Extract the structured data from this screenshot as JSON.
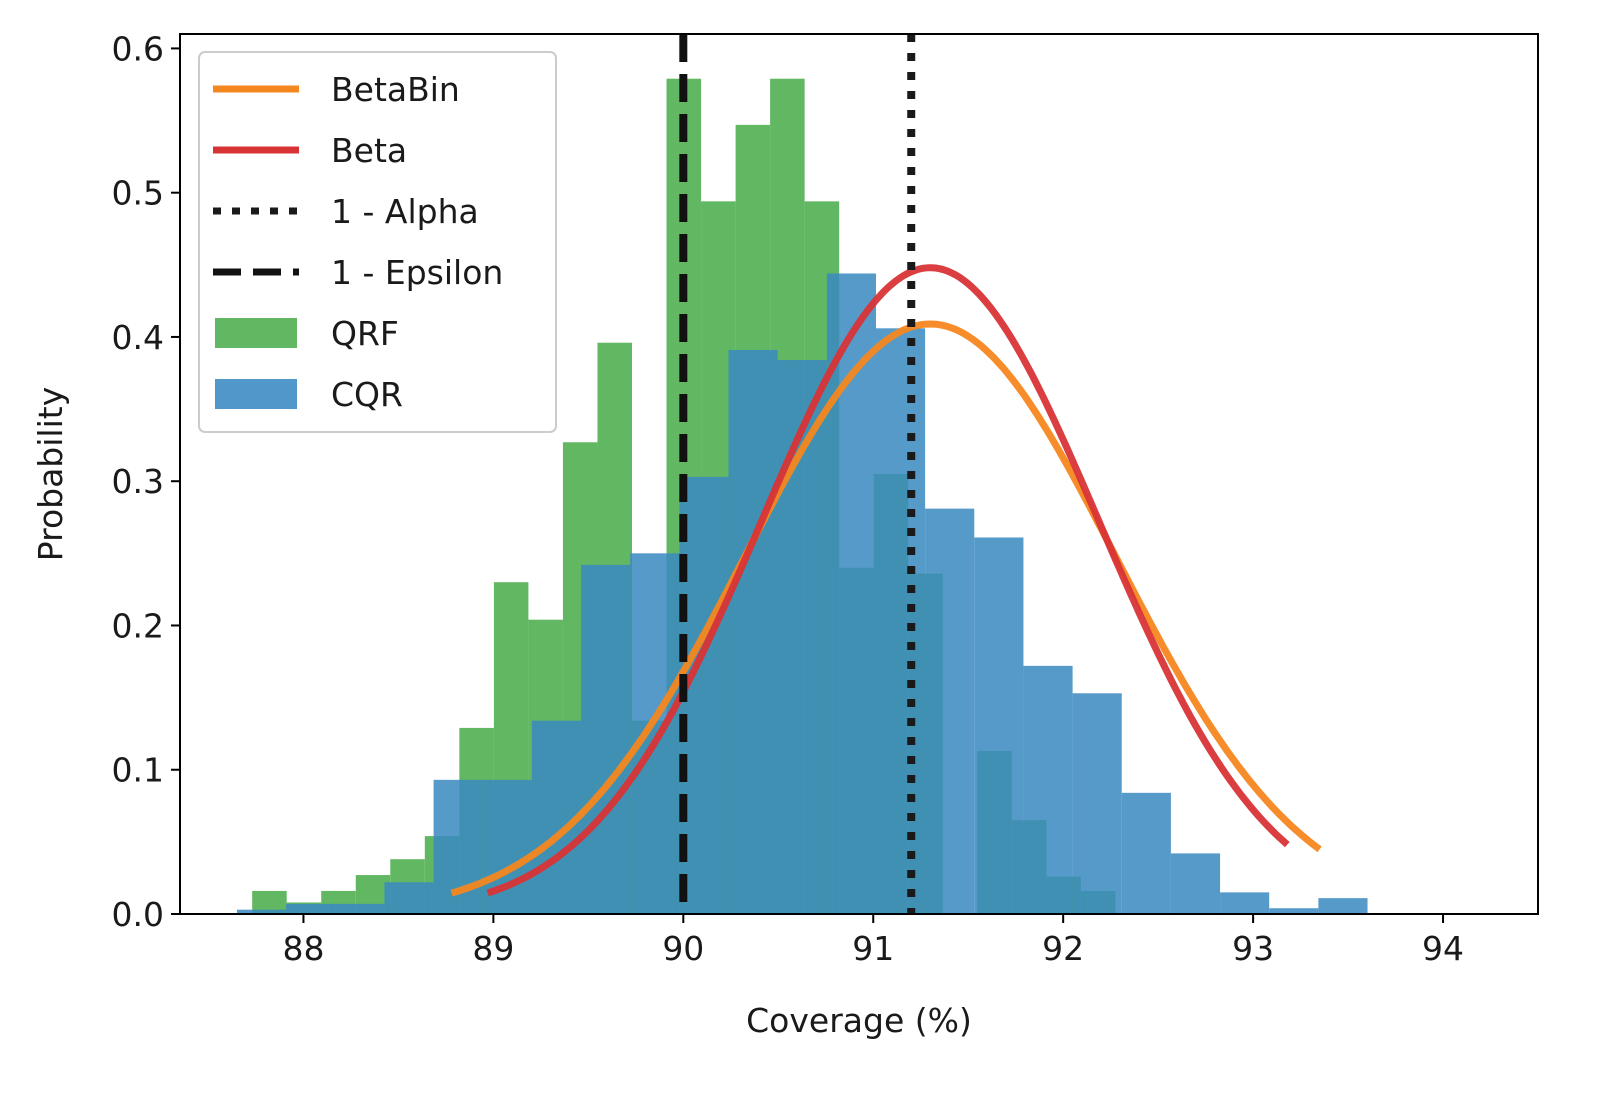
{
  "chart_data": {
    "type": "bar",
    "xlabel": "Coverage (%)",
    "ylabel": "Probability",
    "xlim": [
      87.35,
      94.5
    ],
    "ylim": [
      0,
      0.61
    ],
    "xticks": [
      88,
      89,
      90,
      91,
      92,
      93,
      94
    ],
    "yticks": [
      0.0,
      0.1,
      0.2,
      0.3,
      0.4,
      0.5,
      0.6
    ],
    "grid": false,
    "legend_position": "top-left",
    "histograms": [
      {
        "name": "QRF",
        "color": "#4cad4c",
        "opacity": 0.88,
        "bin_width": 0.1818,
        "x_start": 87.73,
        "values": [
          0.016,
          0.008,
          0.016,
          0.027,
          0.038,
          0.054,
          0.129,
          0.23,
          0.204,
          0.327,
          0.396,
          0.134,
          0.579,
          0.494,
          0.547,
          0.579,
          0.494,
          0.24,
          0.305,
          0.236,
          0.0,
          0.113,
          0.065,
          0.026,
          0.016
        ]
      },
      {
        "name": "CQR",
        "color": "#3a89c1",
        "opacity": 0.86,
        "bin_width": 0.2588,
        "x_start": 87.65,
        "values": [
          0.003,
          0.007,
          0.007,
          0.022,
          0.093,
          0.093,
          0.134,
          0.242,
          0.25,
          0.303,
          0.391,
          0.384,
          0.444,
          0.406,
          0.281,
          0.261,
          0.172,
          0.153,
          0.084,
          0.042,
          0.015,
          0.004,
          0.011
        ]
      }
    ],
    "curves": [
      {
        "name": "BetaBin",
        "color": "#f5871f",
        "mean": 91.3,
        "sd": 0.975,
        "peak": 0.409,
        "x_range": [
          88.78,
          93.35
        ]
      },
      {
        "name": "Beta",
        "color": "#d83436",
        "mean": 91.3,
        "sd": 0.89,
        "peak": 0.448,
        "x_range": [
          88.97,
          93.18
        ]
      }
    ],
    "vlines": [
      {
        "name": "1 - Alpha",
        "x": 91.2,
        "style": "dotted",
        "color": "#1a1a1a"
      },
      {
        "name": "1 - Epsilon",
        "x": 90.0,
        "style": "dashed",
        "color": "#111111"
      }
    ],
    "legend": [
      {
        "label": "BetaBin",
        "kind": "line",
        "color": "#f5871f",
        "style": "solid"
      },
      {
        "label": "Beta",
        "kind": "line",
        "color": "#d83436",
        "style": "solid"
      },
      {
        "label": "1 - Alpha",
        "kind": "line",
        "color": "#1a1a1a",
        "style": "dotted"
      },
      {
        "label": "1 - Epsilon",
        "kind": "line",
        "color": "#111111",
        "style": "dashed"
      },
      {
        "label": "QRF",
        "kind": "patch",
        "color": "#4cad4c"
      },
      {
        "label": "CQR",
        "kind": "patch",
        "color": "#3a89c1"
      }
    ]
  }
}
